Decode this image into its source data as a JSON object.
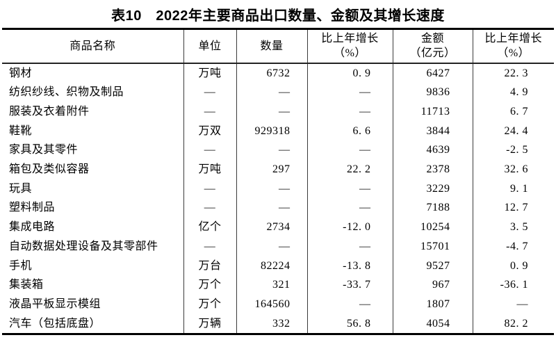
{
  "title": "表10　2022年主要商品出口数量、金额及其增长速度",
  "table": {
    "columns": [
      {
        "label": "商品名称",
        "sub": ""
      },
      {
        "label": "单位",
        "sub": ""
      },
      {
        "label": "数量",
        "sub": ""
      },
      {
        "label": "比上年增长",
        "sub": "（%）"
      },
      {
        "label": "金额",
        "sub": "（亿元）"
      },
      {
        "label": "比上年增长",
        "sub": "（%）"
      }
    ],
    "rows": [
      [
        "钢材",
        "万吨",
        "6732",
        "0. 9",
        "6427",
        "22. 3"
      ],
      [
        "纺织纱线、织物及制品",
        "—",
        "—",
        "—",
        "9836",
        "4. 9"
      ],
      [
        "服装及衣着附件",
        "—",
        "—",
        "—",
        "11713",
        "6. 7"
      ],
      [
        "鞋靴",
        "万双",
        "929318",
        "6. 6",
        "3844",
        "24. 4"
      ],
      [
        "家具及其零件",
        "—",
        "—",
        "—",
        "4639",
        "-2. 5"
      ],
      [
        "箱包及类似容器",
        "万吨",
        "297",
        "22. 2",
        "2378",
        "32. 6"
      ],
      [
        "玩具",
        "—",
        "—",
        "—",
        "3229",
        "9. 1"
      ],
      [
        "塑料制品",
        "—",
        "—",
        "—",
        "7188",
        "12. 7"
      ],
      [
        "集成电路",
        "亿个",
        "2734",
        "-12. 0",
        "10254",
        "3. 5"
      ],
      [
        "自动数据处理设备及其零部件",
        "—",
        "—",
        "—",
        "15701",
        "-4. 7"
      ],
      [
        "手机",
        "万台",
        "82224",
        "-13. 8",
        "9527",
        "0. 9"
      ],
      [
        "集装箱",
        "万个",
        "321",
        "-33. 7",
        "967",
        "-36. 1"
      ],
      [
        "液晶平板显示模组",
        "万个",
        "164560",
        "—",
        "1807",
        "—"
      ],
      [
        "汽车（包括底盘）",
        "万辆",
        "332",
        "56. 8",
        "4054",
        "82. 2"
      ]
    ]
  }
}
